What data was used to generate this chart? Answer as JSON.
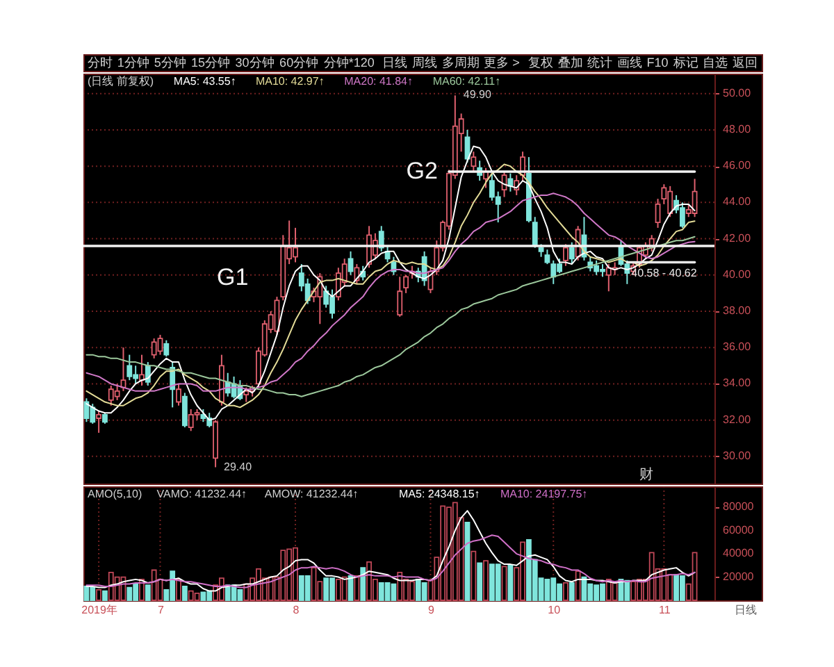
{
  "chart_data": [
    {
      "type": "other",
      "annotations": [
        "分时",
        "1分钟",
        "5分钟",
        "15分钟",
        "30分钟",
        "60分钟",
        "分钟*120",
        "日线",
        "周线",
        "多周期",
        "更多 >",
        "复权",
        "叠加",
        "统计",
        "画线",
        "F10",
        "标记",
        "自选",
        "返回"
      ]
    },
    {
      "type": "candlestick",
      "categories": [
        null,
        null,
        null,
        null,
        null,
        null,
        null,
        null,
        null,
        null,
        null,
        null,
        null,
        null,
        null,
        null,
        null,
        null,
        null,
        null,
        null,
        null,
        null,
        null,
        null,
        null,
        null,
        null,
        null,
        null,
        null,
        null,
        null,
        null,
        null,
        null,
        null,
        null,
        null,
        null,
        null,
        null,
        null,
        null,
        null,
        null,
        null,
        null,
        null,
        null,
        null,
        null,
        null,
        null,
        null,
        null,
        null,
        null,
        null,
        null,
        null,
        null,
        null,
        null,
        null,
        null,
        null,
        null,
        null,
        null,
        null,
        null,
        null,
        null,
        null,
        null,
        null,
        null,
        null,
        null,
        null,
        null,
        null,
        null,
        null,
        null,
        null,
        null,
        null,
        null,
        null,
        "财",
        null,
        null,
        null,
        null,
        null,
        null,
        null,
        null
      ],
      "ohlc": [
        [
          33.0,
          33.2,
          31.9,
          32.1
        ],
        [
          32.7,
          32.9,
          31.8,
          31.9
        ],
        [
          32.1,
          32.5,
          31.3,
          32.3
        ],
        [
          32.3,
          32.4,
          31.8,
          31.9
        ],
        [
          33.1,
          33.9,
          32.8,
          33.7
        ],
        [
          33.3,
          34.0,
          33.1,
          33.6
        ],
        [
          33.8,
          36.0,
          33.6,
          34.2
        ],
        [
          35.0,
          35.6,
          34.2,
          34.4
        ],
        [
          34.5,
          35.0,
          34.0,
          34.3
        ],
        [
          34.2,
          35.6,
          33.9,
          34.5
        ],
        [
          35.0,
          35.2,
          33.9,
          34.1
        ],
        [
          35.6,
          36.5,
          35.4,
          36.3
        ],
        [
          35.8,
          36.7,
          35.6,
          36.5
        ],
        [
          36.2,
          36.4,
          35.5,
          35.6
        ],
        [
          34.9,
          35.2,
          32.7,
          33.7
        ],
        [
          33.0,
          34.0,
          32.8,
          33.7
        ],
        [
          33.3,
          33.5,
          31.6,
          31.7
        ],
        [
          31.6,
          32.6,
          31.4,
          32.3
        ],
        [
          32.3,
          32.6,
          32.0,
          32.4
        ],
        [
          32.3,
          32.6,
          31.9,
          32.1
        ],
        [
          32.1,
          32.4,
          31.6,
          31.7
        ],
        [
          29.9,
          32.0,
          29.4,
          31.9
        ],
        [
          33.0,
          35.6,
          32.8,
          35.0
        ],
        [
          34.1,
          34.6,
          33.3,
          33.5
        ],
        [
          34.0,
          34.4,
          33.2,
          33.3
        ],
        [
          33.9,
          34.2,
          33.1,
          33.2
        ],
        [
          33.4,
          33.8,
          33.0,
          33.6
        ],
        [
          33.6,
          33.9,
          33.3,
          33.8
        ],
        [
          34.0,
          36.0,
          33.8,
          35.8
        ],
        [
          35.6,
          37.5,
          35.5,
          37.3
        ],
        [
          37.0,
          38.0,
          36.8,
          37.8
        ],
        [
          36.9,
          38.8,
          36.7,
          38.6
        ],
        [
          38.8,
          42.2,
          38.6,
          41.6
        ],
        [
          40.9,
          43.0,
          40.6,
          41.5
        ],
        [
          41.0,
          42.6,
          40.7,
          41.5
        ],
        [
          40.1,
          40.6,
          39.1,
          39.4
        ],
        [
          39.5,
          39.8,
          38.4,
          38.6
        ],
        [
          38.8,
          39.3,
          38.5,
          39.1
        ],
        [
          38.8,
          40.1,
          37.3,
          39.9
        ],
        [
          39.1,
          39.4,
          38.2,
          38.4
        ],
        [
          38.8,
          39.2,
          37.6,
          37.9
        ],
        [
          38.8,
          40.4,
          38.6,
          40.1
        ],
        [
          39.6,
          40.9,
          39.4,
          40.6
        ],
        [
          40.9,
          41.3,
          40.0,
          40.2
        ],
        [
          39.7,
          40.6,
          39.5,
          40.4
        ],
        [
          40.2,
          40.5,
          39.7,
          39.9
        ],
        [
          40.6,
          42.7,
          40.4,
          42.2
        ],
        [
          41.1,
          42.3,
          40.9,
          41.9
        ],
        [
          42.4,
          42.7,
          41.3,
          41.5
        ],
        [
          41.3,
          41.6,
          40.7,
          40.9
        ],
        [
          40.7,
          41.0,
          40.0,
          40.2
        ],
        [
          37.8,
          39.9,
          37.7,
          39.1
        ],
        [
          39.3,
          40.0,
          39.0,
          39.9
        ],
        [
          40.1,
          40.5,
          39.8,
          40.2
        ],
        [
          40.2,
          40.4,
          39.6,
          39.9
        ],
        [
          41.0,
          41.3,
          39.4,
          39.7
        ],
        [
          39.2,
          40.4,
          39.0,
          40.2
        ],
        [
          40.2,
          41.9,
          40.0,
          41.5
        ],
        [
          41.5,
          43.0,
          41.3,
          42.9
        ],
        [
          42.7,
          45.8,
          42.5,
          45.6
        ],
        [
          45.5,
          49.9,
          45.3,
          48.2
        ],
        [
          47.8,
          48.9,
          46.8,
          48.6
        ],
        [
          47.6,
          48.0,
          46.2,
          46.4
        ],
        [
          46.0,
          46.8,
          45.7,
          46.5
        ],
        [
          45.9,
          46.3,
          45.2,
          45.5
        ],
        [
          45.3,
          45.9,
          44.8,
          45.7
        ],
        [
          45.2,
          45.6,
          44.1,
          44.3
        ],
        [
          44.3,
          44.6,
          42.9,
          43.9
        ],
        [
          44.7,
          45.7,
          44.3,
          45.5
        ],
        [
          45.3,
          45.6,
          44.6,
          44.9
        ],
        [
          44.7,
          45.5,
          44.4,
          45.2
        ],
        [
          45.5,
          46.8,
          45.2,
          46.5
        ],
        [
          45.6,
          46.5,
          42.9,
          43.0
        ],
        [
          42.9,
          43.2,
          41.5,
          41.6
        ],
        [
          41.5,
          41.7,
          41.0,
          41.3
        ],
        [
          41.1,
          41.4,
          40.6,
          40.7
        ],
        [
          40.6,
          40.8,
          39.5,
          39.9
        ],
        [
          40.6,
          40.9,
          40.1,
          40.2
        ],
        [
          40.8,
          41.7,
          40.5,
          41.5
        ],
        [
          41.5,
          41.8,
          40.6,
          40.9
        ],
        [
          41.0,
          42.7,
          40.8,
          42.5
        ],
        [
          42.2,
          43.2,
          40.8,
          41.0
        ],
        [
          40.7,
          41.0,
          40.2,
          40.4
        ],
        [
          40.5,
          40.8,
          40.0,
          40.2
        ],
        [
          40.3,
          40.6,
          39.9,
          40.2
        ],
        [
          40.0,
          40.6,
          39.1,
          40.4
        ],
        [
          40.3,
          40.7,
          40.0,
          40.4
        ],
        [
          41.6,
          41.9,
          40.5,
          40.6
        ],
        [
          40.6,
          40.8,
          39.5,
          40.1
        ],
        [
          40.2,
          40.7,
          40.0,
          40.5
        ],
        [
          40.6,
          41.6,
          40.4,
          41.5
        ],
        [
          41.1,
          41.8,
          40.9,
          41.6
        ],
        [
          41.5,
          42.2,
          41.3,
          42.0
        ],
        [
          42.9,
          44.2,
          42.6,
          43.9
        ],
        [
          44.2,
          45.0,
          43.9,
          44.8
        ],
        [
          43.4,
          44.9,
          43.2,
          44.6
        ],
        [
          44.1,
          44.4,
          43.4,
          43.6
        ],
        [
          43.7,
          44.0,
          42.6,
          42.7
        ],
        [
          43.4,
          43.9,
          43.2,
          43.6
        ],
        [
          43.4,
          45.3,
          43.2,
          44.6
        ]
      ],
      "colors": [
        "#7fe5dc",
        "#7fe5dc",
        "#e0606e",
        "#7fe5dc",
        "#e0606e",
        "#e0606e",
        "#e0606e",
        "#7fe5dc",
        "#7fe5dc",
        "#e0606e",
        "#7fe5dc",
        "#e0606e",
        "#e0606e",
        "#7fe5dc",
        "#7fe5dc",
        "#e0606e",
        "#7fe5dc",
        "#e0606e",
        "#e0606e",
        "#7fe5dc",
        "#7fe5dc",
        "#e0606e",
        "#e0606e",
        "#7fe5dc",
        "#7fe5dc",
        "#7fe5dc",
        "#e0606e",
        "#e0606e",
        "#e0606e",
        "#e0606e",
        "#e0606e",
        "#e0606e",
        "#e0606e",
        "#e0606e",
        "#e0606e",
        "#7fe5dc",
        "#7fe5dc",
        "#e0606e",
        "#e0606e",
        "#7fe5dc",
        "#7fe5dc",
        "#e0606e",
        "#e0606e",
        "#7fe5dc",
        "#e0606e",
        "#7fe5dc",
        "#e0606e",
        "#e0606e",
        "#7fe5dc",
        "#7fe5dc",
        "#7fe5dc",
        "#e0606e",
        "#e0606e",
        "#e0606e",
        "#7fe5dc",
        "#7fe5dc",
        "#e0606e",
        "#e0606e",
        "#e0606e",
        "#e0606e",
        "#e0606e",
        "#e0606e",
        "#7fe5dc",
        "#e0606e",
        "#7fe5dc",
        "#e0606e",
        "#7fe5dc",
        "#7fe5dc",
        "#e0606e",
        "#7fe5dc",
        "#e0606e",
        "#e0606e",
        "#7fe5dc",
        "#7fe5dc",
        "#7fe5dc",
        "#7fe5dc",
        "#7fe5dc",
        "#7fe5dc",
        "#e0606e",
        "#7fe5dc",
        "#e0606e",
        "#7fe5dc",
        "#7fe5dc",
        "#7fe5dc",
        "#7fe5dc",
        "#e0606e",
        "#e0606e",
        "#7fe5dc",
        "#7fe5dc",
        "#e0606e",
        "#e0606e",
        "#e0606e",
        "#e0606e",
        "#e0606e",
        "#e0606e",
        "#e0606e",
        "#7fe5dc",
        "#7fe5dc",
        "#e0606e",
        "#e0606e"
      ],
      "ylim": [
        28.5,
        51.1
      ],
      "yticks": [
        {
          "value": 30,
          "label": "30.00"
        },
        {
          "value": 32,
          "label": "32.00"
        },
        {
          "value": 34,
          "label": "34.00"
        },
        {
          "value": 36,
          "label": "36.00"
        },
        {
          "value": 38,
          "label": "38.00"
        },
        {
          "value": 40,
          "label": "40.00"
        },
        {
          "value": 42,
          "label": "42.00"
        },
        {
          "value": 44,
          "label": "44.00"
        },
        {
          "value": 46,
          "label": "46.00"
        },
        {
          "value": 48,
          "label": "48.00"
        },
        {
          "value": 50,
          "label": "50.00"
        }
      ],
      "grid": "y",
      "legend": "top left",
      "series": [
        {
          "type": "line",
          "name": "MA5: 43.55↑",
          "color": "#ffffff",
          "values": [
            32.9,
            32.7,
            32.5,
            32.4,
            32.4,
            32.7,
            33.1,
            33.6,
            34.0,
            34.2,
            34.3,
            34.7,
            35.1,
            35.4,
            35.2,
            35.2,
            34.2,
            33.4,
            32.8,
            32.4,
            32.0,
            32.1,
            32.6,
            32.8,
            33.1,
            33.4,
            33.7,
            33.5,
            33.9,
            34.7,
            35.7,
            36.7,
            38.2,
            39.4,
            40.2,
            40.5,
            40.5,
            40.0,
            39.7,
            39.1,
            38.8,
            39.1,
            39.4,
            39.4,
            39.8,
            40.2,
            40.7,
            40.9,
            41.2,
            41.3,
            41.3,
            40.7,
            40.3,
            40.1,
            39.9,
            39.8,
            40.0,
            40.3,
            40.8,
            42.0,
            43.7,
            45.4,
            46.3,
            47.1,
            47.0,
            46.5,
            45.7,
            45.2,
            45.0,
            44.9,
            44.8,
            45.2,
            45.0,
            44.2,
            43.5,
            42.6,
            41.3,
            40.7,
            40.7,
            40.6,
            41.0,
            41.2,
            41.3,
            41.0,
            40.9,
            40.4,
            40.3,
            40.4,
            40.3,
            40.4,
            40.6,
            40.9,
            41.1,
            41.9,
            42.8,
            43.4,
            43.8,
            43.9,
            43.9,
            43.55
          ]
        },
        {
          "type": "line",
          "name": "MA10: 42.97↑",
          "color": "#e4dc98",
          "values": [
            33.6,
            33.4,
            33.2,
            33.0,
            32.9,
            32.8,
            32.8,
            33.0,
            33.2,
            33.3,
            33.5,
            33.9,
            34.4,
            34.7,
            34.7,
            34.8,
            34.5,
            34.3,
            34.1,
            33.8,
            33.6,
            33.2,
            33.0,
            32.8,
            32.8,
            32.7,
            32.9,
            33.1,
            33.4,
            33.9,
            34.6,
            35.2,
            35.9,
            36.7,
            37.5,
            38.1,
            38.6,
            39.1,
            39.6,
            39.7,
            39.7,
            39.8,
            39.7,
            39.6,
            39.5,
            39.5,
            39.9,
            40.2,
            40.3,
            40.6,
            40.8,
            40.7,
            40.6,
            40.7,
            40.6,
            40.6,
            40.4,
            40.3,
            40.5,
            41.0,
            41.8,
            42.7,
            43.3,
            44.0,
            44.5,
            45.1,
            45.6,
            45.8,
            46.1,
            46.0,
            45.7,
            45.5,
            45.1,
            44.6,
            44.2,
            43.7,
            43.3,
            42.9,
            42.5,
            42.1,
            41.8,
            41.3,
            41.0,
            40.9,
            40.8,
            40.7,
            40.8,
            40.9,
            40.7,
            40.7,
            40.5,
            40.6,
            40.8,
            41.1,
            41.6,
            42.0,
            42.4,
            42.5,
            42.9,
            42.97
          ]
        },
        {
          "type": "line",
          "name": "MA20: 41.84↑",
          "color": "#d078c8",
          "values": [
            34.6,
            34.5,
            34.4,
            34.2,
            34.0,
            33.9,
            33.8,
            33.7,
            33.6,
            33.6,
            33.6,
            33.6,
            33.7,
            33.8,
            33.9,
            34.0,
            34.0,
            34.0,
            33.9,
            33.6,
            33.6,
            33.6,
            33.7,
            33.8,
            33.8,
            33.8,
            33.7,
            33.7,
            33.8,
            33.9,
            34.1,
            34.2,
            34.5,
            34.8,
            35.2,
            35.4,
            35.8,
            36.1,
            36.5,
            36.8,
            37.2,
            37.5,
            37.8,
            38.2,
            38.5,
            38.8,
            39.3,
            39.7,
            40.0,
            40.2,
            40.3,
            40.3,
            40.2,
            40.2,
            40.1,
            40.1,
            40.2,
            40.3,
            40.4,
            40.8,
            41.3,
            41.7,
            42.0,
            42.4,
            42.6,
            42.9,
            43.0,
            43.1,
            43.3,
            43.5,
            43.8,
            44.1,
            44.2,
            44.3,
            44.4,
            44.4,
            44.5,
            44.4,
            44.3,
            44.1,
            43.8,
            43.4,
            43.1,
            42.8,
            42.5,
            42.2,
            42.1,
            41.9,
            41.6,
            41.4,
            41.2,
            41.0,
            40.9,
            41.0,
            41.2,
            41.4,
            41.6,
            41.7,
            41.8,
            41.84
          ]
        },
        {
          "type": "line",
          "name": "MA60: 42.11↑",
          "color": "#9cc89c",
          "values": [
            35.6,
            35.6,
            35.5,
            35.5,
            35.4,
            35.4,
            35.3,
            35.2,
            35.2,
            35.1,
            35.0,
            35.0,
            34.9,
            34.8,
            34.8,
            34.7,
            34.6,
            34.6,
            34.5,
            34.4,
            34.3,
            34.3,
            34.2,
            34.1,
            34.0,
            33.9,
            33.9,
            33.8,
            33.7,
            33.7,
            33.6,
            33.5,
            33.5,
            33.4,
            33.4,
            33.3,
            33.4,
            33.5,
            33.6,
            33.7,
            33.8,
            33.9,
            34.1,
            34.2,
            34.4,
            34.5,
            34.7,
            34.9,
            35.0,
            35.2,
            35.4,
            35.6,
            35.9,
            36.1,
            36.3,
            36.6,
            36.8,
            37.1,
            37.3,
            37.6,
            37.8,
            38.1,
            38.2,
            38.4,
            38.5,
            38.6,
            38.7,
            38.9,
            39.0,
            39.1,
            39.2,
            39.4,
            39.5,
            39.6,
            39.7,
            39.8,
            39.9,
            40.0,
            40.1,
            40.2,
            40.3,
            40.4,
            40.5,
            40.6,
            40.7,
            40.8,
            40.9,
            41.0,
            41.1,
            41.2,
            41.3,
            41.4,
            41.5,
            41.6,
            41.7,
            41.8,
            41.9,
            41.9,
            42.0,
            42.11
          ]
        },
        {
          "type": "line",
          "color": "#f2f2f2",
          "values": [
            null,
            null,
            null,
            null,
            null,
            null,
            null,
            null,
            null,
            null,
            null,
            null,
            null,
            null,
            null,
            null,
            null,
            null,
            null,
            null,
            null,
            null,
            null,
            null,
            null,
            null,
            null,
            null,
            null,
            null,
            null,
            null,
            null,
            null,
            null,
            null,
            null,
            null,
            null,
            null,
            null,
            null,
            null,
            null,
            null,
            null,
            null,
            null,
            null,
            null,
            null,
            null,
            null,
            null,
            null,
            null,
            null,
            null,
            null,
            45.7,
            45.7,
            45.7,
            45.7,
            45.7,
            45.7,
            45.7,
            45.7,
            45.7,
            45.7,
            45.7,
            45.7,
            45.7,
            45.7,
            45.7,
            45.7,
            45.7,
            45.7,
            45.7,
            45.7,
            45.7,
            45.7,
            45.7,
            45.7,
            45.7,
            45.7,
            45.7,
            45.7,
            45.7,
            45.7,
            45.7,
            45.7,
            45.7,
            45.7,
            45.7,
            45.7,
            45.7,
            45.7,
            45.7,
            45.7,
            45.7
          ]
        },
        {
          "type": "line",
          "color": "#e8e8e8",
          "values": [
            null,
            null,
            null,
            null,
            null,
            null,
            null,
            null,
            null,
            null,
            null,
            null,
            null,
            null,
            null,
            null,
            null,
            null,
            null,
            null,
            null,
            null,
            null,
            null,
            null,
            null,
            null,
            null,
            null,
            null,
            null,
            null,
            null,
            null,
            null,
            null,
            null,
            null,
            null,
            null,
            null,
            null,
            null,
            null,
            null,
            null,
            null,
            null,
            null,
            null,
            null,
            null,
            null,
            null,
            null,
            null,
            null,
            null,
            null,
            null,
            null,
            null,
            null,
            null,
            null,
            null,
            null,
            null,
            null,
            null,
            null,
            null,
            null,
            null,
            null,
            null,
            null,
            null,
            null,
            null,
            null,
            null,
            null,
            null,
            null,
            null,
            null,
            null,
            40.7,
            40.7,
            40.7,
            40.7,
            40.7,
            40.7,
            40.7,
            40.7,
            40.7,
            40.7,
            40.7,
            40.7
          ]
        }
      ],
      "ref_lines": [
        {
          "axis": "y",
          "value": 41.6,
          "label": "G1",
          "color": "#f2f2f2"
        }
      ],
      "annotations": [
        "(日线 前复权)",
        "49.90",
        "29.40",
        "G2",
        "40.58 - 40.62"
      ]
    },
    {
      "type": "bar",
      "xlabel": "日线",
      "categories": [
        null,
        null,
        "2019年",
        null,
        null,
        null,
        null,
        null,
        null,
        null,
        null,
        null,
        "7",
        null,
        null,
        null,
        null,
        null,
        null,
        null,
        null,
        null,
        null,
        null,
        null,
        null,
        null,
        null,
        null,
        null,
        null,
        null,
        null,
        null,
        "8",
        null,
        null,
        null,
        null,
        null,
        null,
        null,
        null,
        null,
        null,
        null,
        null,
        null,
        null,
        null,
        null,
        null,
        null,
        null,
        null,
        null,
        "9",
        null,
        null,
        null,
        null,
        null,
        null,
        null,
        null,
        null,
        null,
        null,
        null,
        null,
        null,
        null,
        null,
        null,
        null,
        null,
        "10",
        null,
        null,
        null,
        null,
        null,
        null,
        null,
        null,
        null,
        null,
        null,
        null,
        null,
        null,
        null,
        null,
        null,
        "11",
        null,
        null,
        null,
        null,
        null
      ],
      "ylim": [
        0,
        98000
      ],
      "yticks": [
        20000,
        40000,
        60000,
        80000
      ],
      "grid": "x",
      "legend": "top right",
      "series": [
        {
          "type": "bar",
          "values": [
            12000,
            11000,
            9000,
            8000,
            24000,
            20000,
            20000,
            11000,
            14000,
            18000,
            13000,
            26000,
            18000,
            9000,
            25000,
            18000,
            12000,
            8000,
            6000,
            7000,
            8000,
            13000,
            19000,
            13000,
            13000,
            9000,
            14000,
            19000,
            27000,
            19000,
            20000,
            20000,
            43000,
            44000,
            45000,
            21000,
            21000,
            28000,
            16000,
            19000,
            19000,
            18000,
            20000,
            21000,
            21000,
            28000,
            33000,
            18000,
            15000,
            15000,
            14000,
            24000,
            18000,
            16000,
            18000,
            15000,
            17000,
            37000,
            81000,
            80000,
            84000,
            71000,
            67000,
            42000,
            32000,
            34000,
            31000,
            31000,
            29000,
            30000,
            28000,
            50000,
            52000,
            35000,
            19000,
            18000,
            19000,
            14000,
            15000,
            15000,
            25000,
            20000,
            14000,
            13000,
            14000,
            18000,
            15000,
            18000,
            17000,
            16000,
            18000,
            18000,
            41000,
            27000,
            27000,
            22000,
            22000,
            21000,
            14000,
            41000
          ],
          "colors": [
            "#7fe5dc",
            "#7fe5dc",
            "#c04858",
            "#7fe5dc",
            "#c04858",
            "#c04858",
            "#c04858",
            "#7fe5dc",
            "#7fe5dc",
            "#c04858",
            "#7fe5dc",
            "#c04858",
            "#c04858",
            "#7fe5dc",
            "#7fe5dc",
            "#c04858",
            "#7fe5dc",
            "#c04858",
            "#c04858",
            "#7fe5dc",
            "#7fe5dc",
            "#c04858",
            "#c04858",
            "#7fe5dc",
            "#7fe5dc",
            "#7fe5dc",
            "#c04858",
            "#c04858",
            "#c04858",
            "#c04858",
            "#c04858",
            "#c04858",
            "#c04858",
            "#c04858",
            "#c04858",
            "#7fe5dc",
            "#7fe5dc",
            "#c04858",
            "#c04858",
            "#7fe5dc",
            "#7fe5dc",
            "#c04858",
            "#c04858",
            "#7fe5dc",
            "#c04858",
            "#7fe5dc",
            "#c04858",
            "#c04858",
            "#7fe5dc",
            "#7fe5dc",
            "#7fe5dc",
            "#c04858",
            "#c04858",
            "#c04858",
            "#7fe5dc",
            "#7fe5dc",
            "#c04858",
            "#c04858",
            "#c04858",
            "#c04858",
            "#c04858",
            "#c04858",
            "#7fe5dc",
            "#c04858",
            "#7fe5dc",
            "#c04858",
            "#7fe5dc",
            "#7fe5dc",
            "#c04858",
            "#7fe5dc",
            "#c04858",
            "#c04858",
            "#7fe5dc",
            "#7fe5dc",
            "#7fe5dc",
            "#7fe5dc",
            "#7fe5dc",
            "#7fe5dc",
            "#c04858",
            "#7fe5dc",
            "#c04858",
            "#7fe5dc",
            "#7fe5dc",
            "#7fe5dc",
            "#7fe5dc",
            "#c04858",
            "#c04858",
            "#7fe5dc",
            "#7fe5dc",
            "#c04858",
            "#c04858",
            "#c04858",
            "#c04858",
            "#c04858",
            "#c04858",
            "#c04858",
            "#7fe5dc",
            "#7fe5dc",
            "#c04858",
            "#c04858"
          ]
        },
        {
          "type": "line",
          "name": "MA5: 24348.15↑",
          "color": "#ffffff",
          "values": [
            12000,
            12000,
            11000,
            11000,
            13000,
            14000,
            16000,
            17000,
            18000,
            17000,
            15000,
            16000,
            18000,
            17000,
            18000,
            19000,
            16000,
            14000,
            14000,
            10000,
            8000,
            8000,
            11000,
            12000,
            13000,
            13000,
            14000,
            14000,
            16000,
            18000,
            20000,
            21000,
            26000,
            29000,
            34000,
            35000,
            35000,
            32000,
            26000,
            21000,
            21000,
            20000,
            18000,
            19000,
            20000,
            22000,
            25000,
            24000,
            23000,
            22000,
            19000,
            17000,
            17000,
            17000,
            18000,
            18000,
            17000,
            21000,
            34000,
            46000,
            60000,
            71000,
            77000,
            69000,
            59000,
            49000,
            41000,
            34000,
            31000,
            31000,
            30000,
            34000,
            38000,
            39000,
            37000,
            35000,
            29000,
            21000,
            17000,
            16000,
            18000,
            18000,
            18000,
            17000,
            17000,
            16000,
            15000,
            16000,
            16000,
            17000,
            17000,
            17000,
            22000,
            24000,
            26000,
            27000,
            28000,
            24000,
            21000,
            24000
          ]
        },
        {
          "type": "line",
          "name": "MA10: 24197.75↑",
          "color": "#d070c8",
          "values": [
            13000,
            13000,
            13000,
            12000,
            12000,
            13000,
            14000,
            14000,
            15000,
            15000,
            15000,
            16000,
            18000,
            17000,
            18000,
            17000,
            16000,
            16000,
            15000,
            14000,
            13000,
            12000,
            12000,
            13000,
            12000,
            11000,
            11000,
            13000,
            14000,
            15000,
            16000,
            18000,
            20000,
            22000,
            26000,
            28000,
            28000,
            29000,
            28000,
            27000,
            28000,
            27000,
            25000,
            22000,
            20000,
            21000,
            22000,
            21000,
            21000,
            21000,
            20000,
            21000,
            20000,
            20000,
            20000,
            18000,
            17000,
            19000,
            25000,
            32000,
            39000,
            44000,
            49000,
            51000,
            52000,
            54000,
            56000,
            55000,
            50000,
            45000,
            40000,
            38000,
            36000,
            35000,
            34000,
            32000,
            31000,
            29000,
            28000,
            26000,
            26000,
            23000,
            19000,
            17000,
            16000,
            17000,
            16000,
            17000,
            16000,
            17000,
            16000,
            16000,
            19000,
            20000,
            21000,
            22000,
            22000,
            23000,
            22000,
            24000
          ]
        }
      ],
      "annotations": [
        "AMO(5,10)",
        "VAMO: 41232.44↑",
        "AMOW: 41232.44↑"
      ]
    }
  ]
}
